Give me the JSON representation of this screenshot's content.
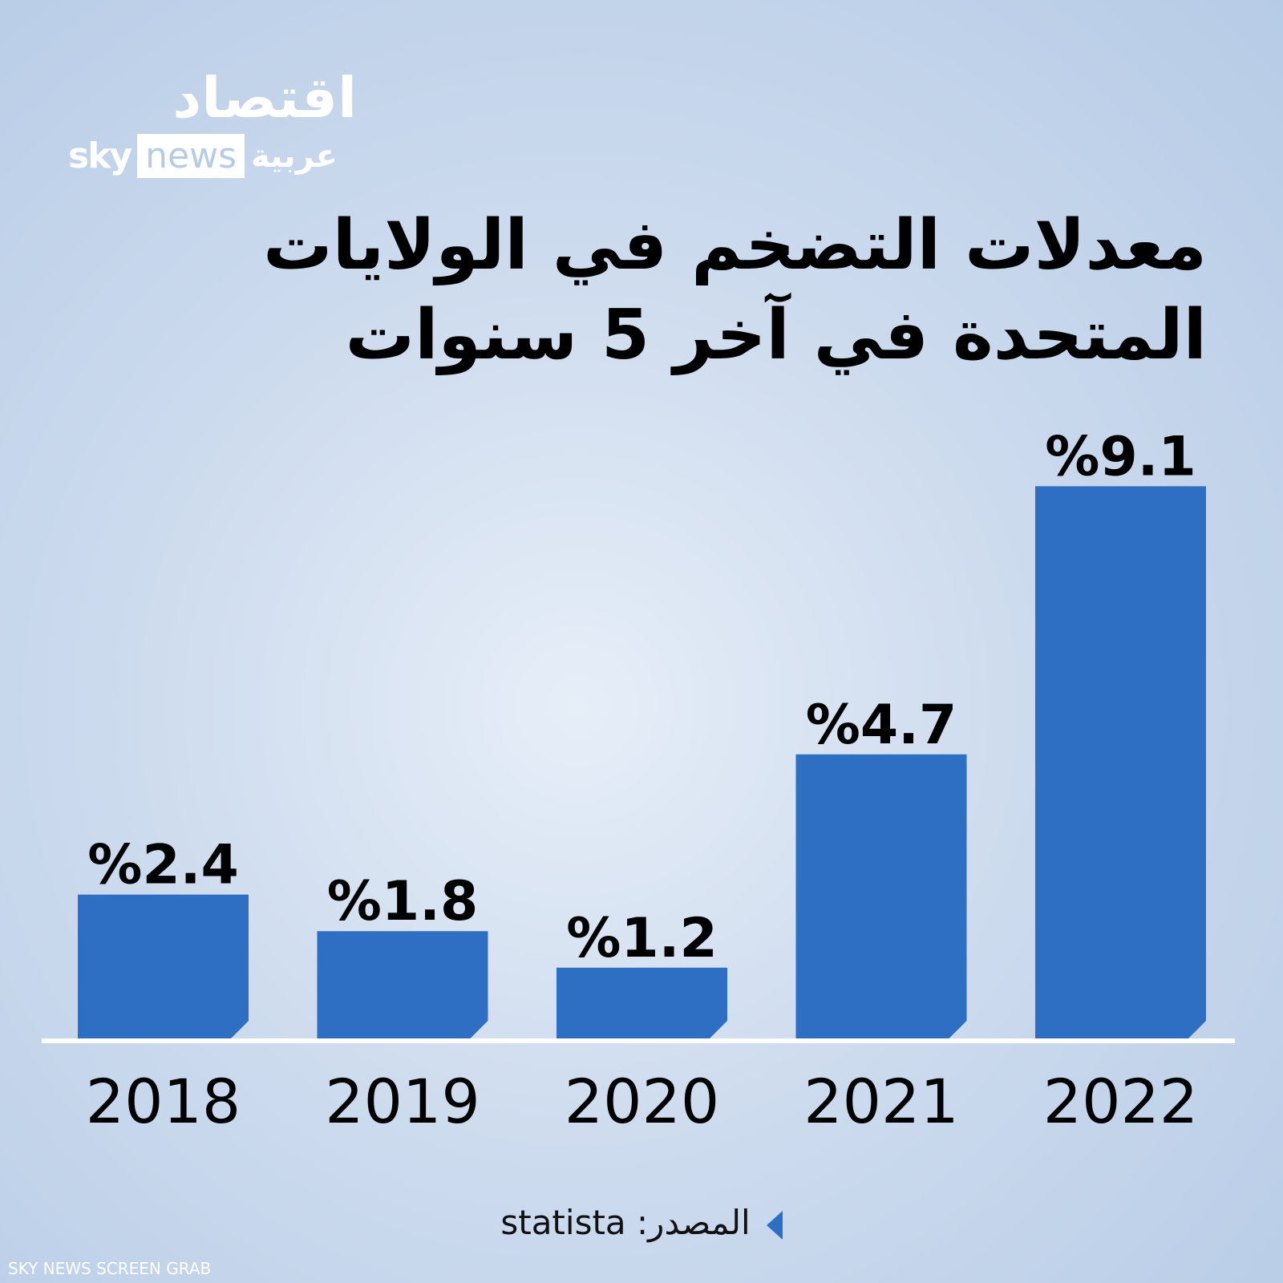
{
  "logo": {
    "name": "اقتصاد",
    "brand_sky": "sky",
    "brand_news": "news",
    "brand_ar": "عربية"
  },
  "chart_data": {
    "type": "bar",
    "title": "معدلات التضخم في الولايات المتحدة في آخر 5 سنوات",
    "categories": [
      "2018",
      "2019",
      "2020",
      "2021",
      "2022"
    ],
    "values": [
      2.4,
      1.8,
      1.2,
      4.7,
      9.1
    ],
    "value_labels": [
      "%2.4",
      "%1.8",
      "%1.2",
      "%4.7",
      "%9.1"
    ],
    "color": "#2f6fc3"
  },
  "source": "المصدر: statista",
  "watermark": "SKY NEWS SCREEN GRAB"
}
